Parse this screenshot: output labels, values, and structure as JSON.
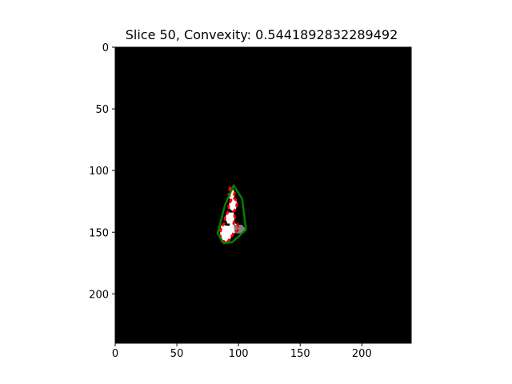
{
  "chart_data": {
    "type": "image",
    "title": "Slice 50, Convexity: 0.5441892832289492",
    "xlim": [
      0,
      240
    ],
    "ylim": [
      240,
      0
    ],
    "x_ticks": [
      0,
      50,
      100,
      150,
      200
    ],
    "y_ticks": [
      0,
      50,
      100,
      150,
      200
    ],
    "background": "#000000",
    "series": [
      {
        "kind": "region",
        "color": "#ffffff",
        "polygons": [
          [
            [
              93,
              115
            ],
            [
              96,
              115
            ],
            [
              97,
              120
            ],
            [
              95,
              124
            ],
            [
              92,
              122
            ],
            [
              93,
              118
            ]
          ],
          [
            [
              93,
              124
            ],
            [
              97,
              123
            ],
            [
              99,
              126
            ],
            [
              98,
              131
            ],
            [
              95,
              133
            ],
            [
              92,
              130
            ]
          ],
          [
            [
              91,
              134
            ],
            [
              96,
              134
            ],
            [
              97,
              139
            ],
            [
              95,
              143
            ],
            [
              91,
              143
            ],
            [
              89,
              138
            ]
          ],
          [
            [
              86,
              144
            ],
            [
              93,
              145
            ],
            [
              95,
              150
            ],
            [
              93,
              157
            ],
            [
              87,
              158
            ],
            [
              85,
              152
            ]
          ],
          [
            [
              93,
              143
            ],
            [
              98,
              143
            ],
            [
              100,
              148
            ],
            [
              96,
              151
            ],
            [
              92,
              148
            ]
          ]
        ]
      },
      {
        "kind": "region",
        "color": "#808080",
        "polygons": [
          [
            [
              96,
              144
            ],
            [
              103,
              144
            ],
            [
              106,
              148
            ],
            [
              103,
              151
            ],
            [
              97,
              151
            ]
          ]
        ]
      },
      {
        "kind": "contour",
        "color": "#ff0000",
        "closed": true,
        "points": [
          [
            93,
            114
          ],
          [
            97,
            117
          ],
          [
            96,
            122
          ],
          [
            99,
            125
          ],
          [
            98,
            131
          ],
          [
            96,
            133
          ],
          [
            97,
            138
          ],
          [
            96,
            143
          ],
          [
            99,
            143
          ],
          [
            100,
            148
          ],
          [
            96,
            151
          ],
          [
            94,
            154
          ],
          [
            91,
            158
          ],
          [
            86,
            157
          ],
          [
            85,
            152
          ],
          [
            86,
            146
          ],
          [
            89,
            142
          ],
          [
            89,
            137
          ],
          [
            92,
            133
          ],
          [
            92,
            128
          ],
          [
            94,
            124
          ],
          [
            92,
            119
          ]
        ]
      },
      {
        "kind": "convex_hull",
        "color": "#008000",
        "closed": true,
        "points": [
          [
            96,
            112
          ],
          [
            103,
            123
          ],
          [
            106,
            148
          ],
          [
            95,
            158
          ],
          [
            88,
            159
          ],
          [
            83,
            151
          ],
          [
            89,
            128
          ]
        ]
      }
    ]
  }
}
